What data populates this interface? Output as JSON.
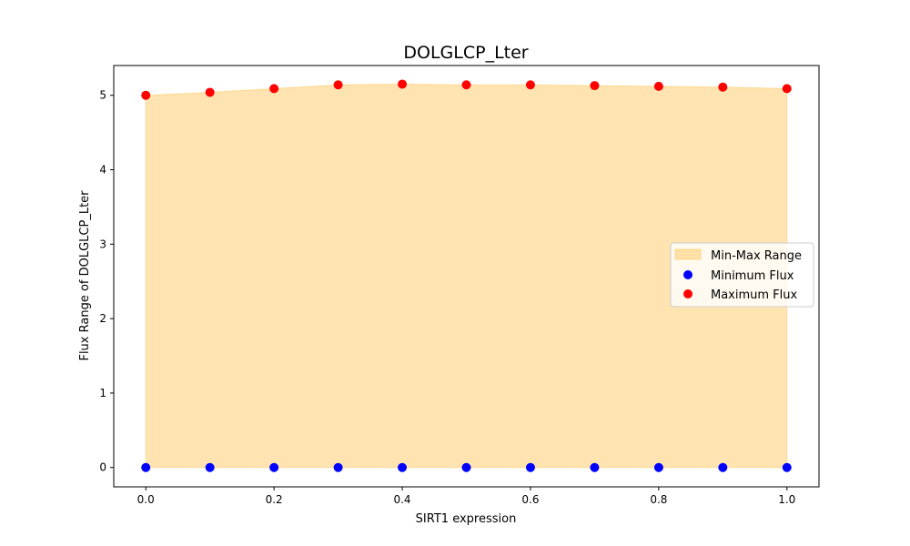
{
  "chart_data": {
    "type": "scatter",
    "title": "DOLGLCP_Lter",
    "xlabel": "SIRT1 expression",
    "ylabel": "Flux Range of DOLGLCP_Lter",
    "xlim": [
      -0.05,
      1.05
    ],
    "ylim": [
      -0.26,
      5.4
    ],
    "x_ticks": [
      "0.0",
      "0.2",
      "0.4",
      "0.6",
      "0.8",
      "1.0"
    ],
    "y_ticks": [
      "0",
      "1",
      "2",
      "3",
      "4",
      "5"
    ],
    "x": [
      0.0,
      0.1,
      0.2,
      0.3,
      0.4,
      0.5,
      0.6,
      0.7,
      0.8,
      0.9,
      1.0
    ],
    "fill": {
      "name": "Min-Max Range",
      "color": "#ffa500",
      "alpha": 0.3
    },
    "series": [
      {
        "name": "Minimum Flux",
        "color": "#0000ff",
        "values": [
          0,
          0,
          0,
          0,
          0,
          0,
          0,
          0,
          0,
          0,
          0
        ]
      },
      {
        "name": "Maximum Flux",
        "color": "#ff0000",
        "values": [
          5.0,
          5.04,
          5.09,
          5.14,
          5.15,
          5.14,
          5.14,
          5.13,
          5.12,
          5.11,
          5.09
        ]
      }
    ],
    "grid": false,
    "legend": "center-right"
  }
}
